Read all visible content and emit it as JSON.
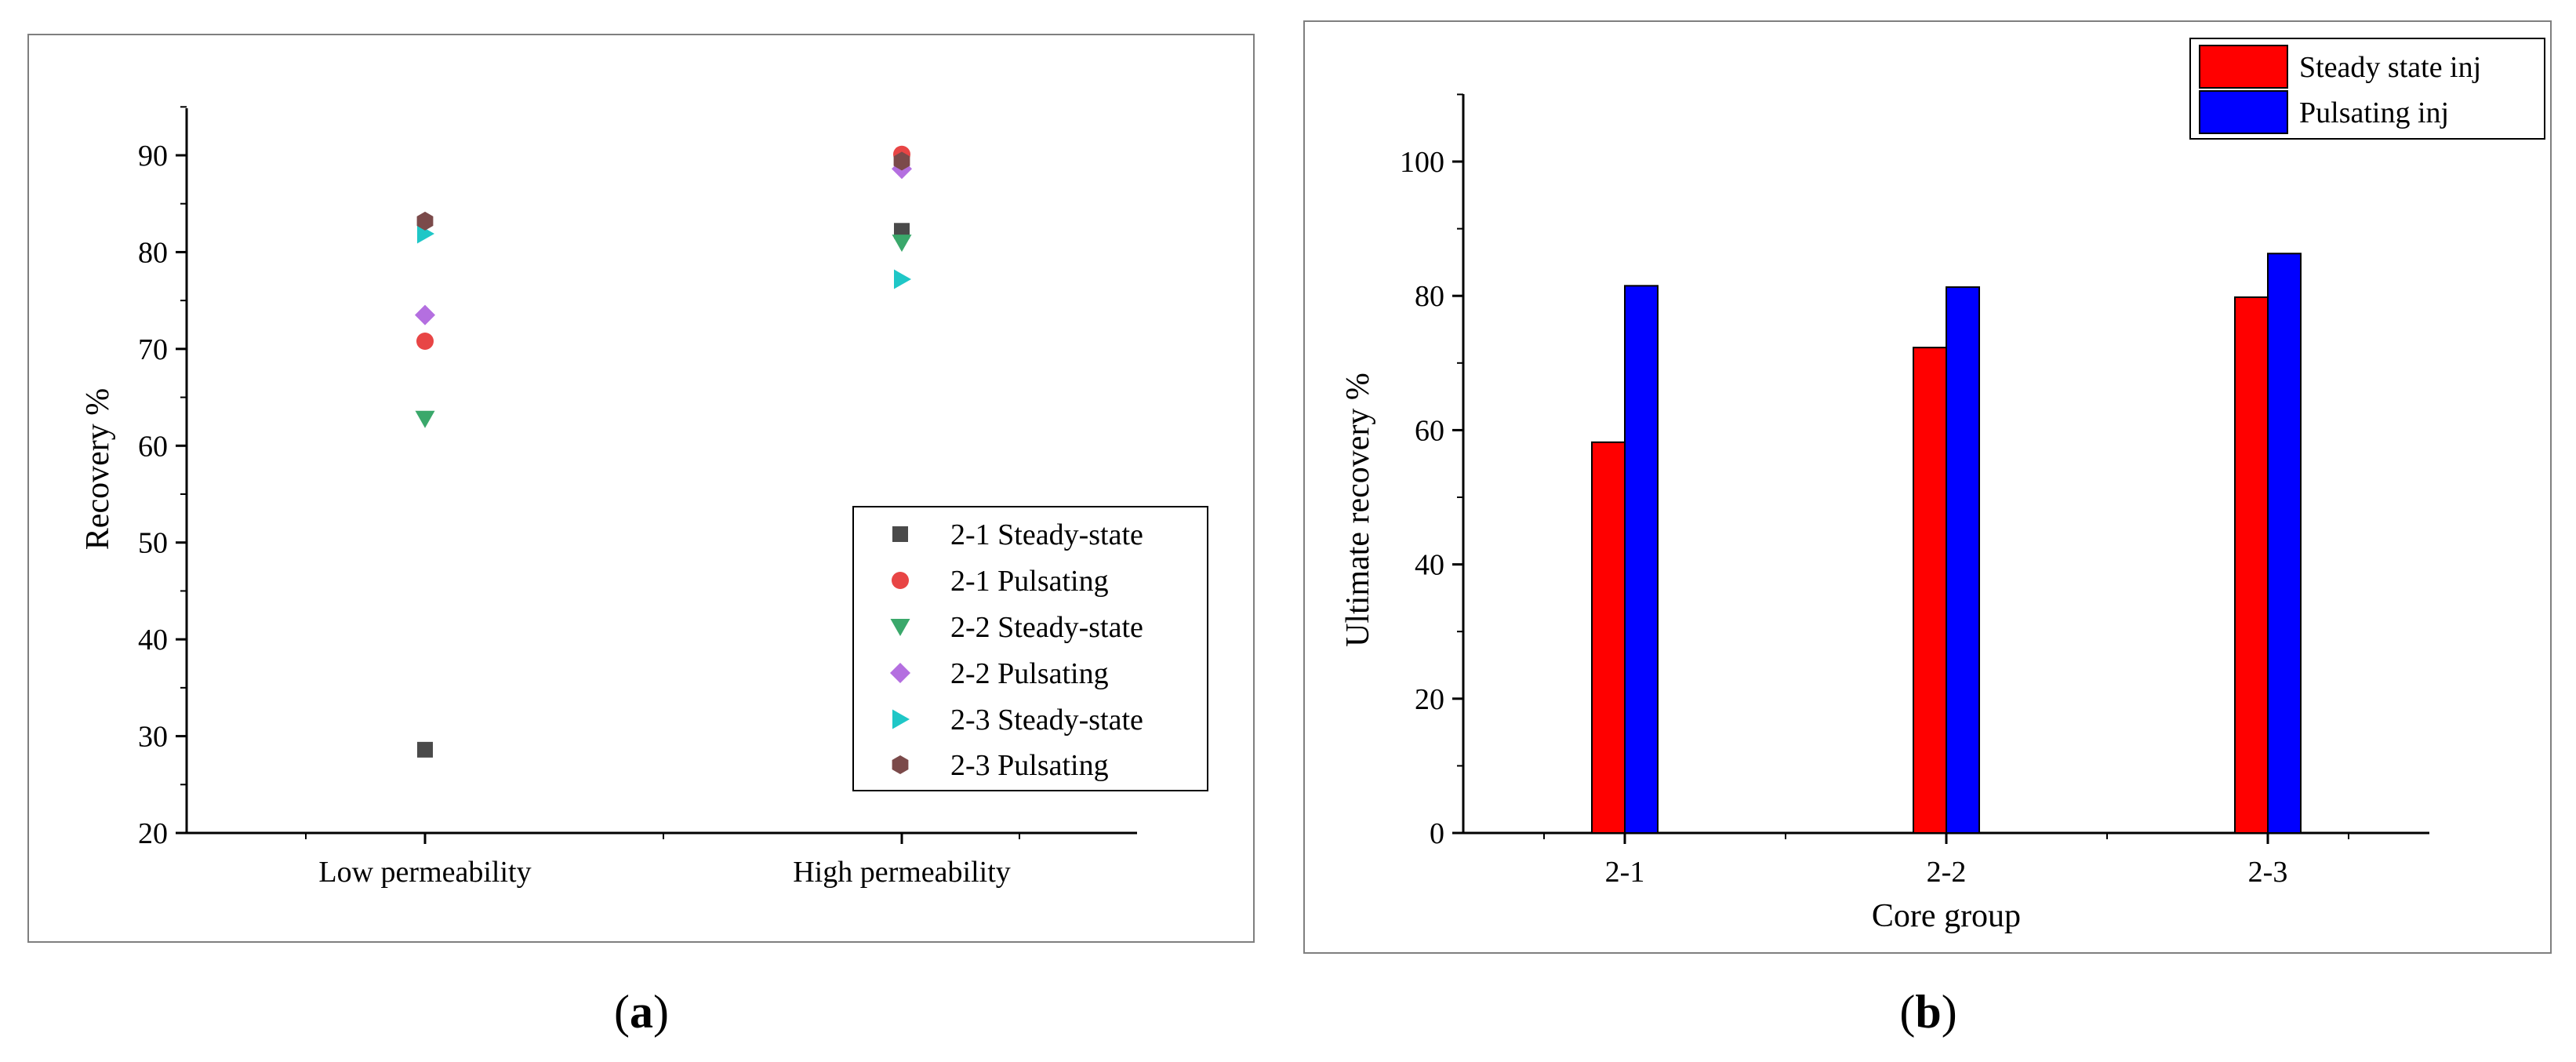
{
  "figure_captions": {
    "a": {
      "open": "(",
      "letter": "a",
      "close": ")"
    },
    "b": {
      "open": "(",
      "letter": "b",
      "close": ")"
    }
  },
  "chart_data": [
    {
      "id": "a",
      "type": "scatter",
      "title": "",
      "xlabel": "",
      "ylabel": "Recovery %",
      "categories": [
        "Low permeability",
        "High permeability"
      ],
      "ylim": [
        20,
        95
      ],
      "yticks": [
        20,
        30,
        40,
        50,
        60,
        70,
        80,
        90
      ],
      "grid": false,
      "legend_position": "bottom-right",
      "series": [
        {
          "name": "2-1 Steady-state",
          "marker": "square",
          "color": "#4a4a4a",
          "values": [
            28.6,
            82.2
          ]
        },
        {
          "name": "2-1 Pulsating",
          "marker": "circle",
          "color": "#e84545",
          "values": [
            70.8,
            90.1
          ]
        },
        {
          "name": "2-2 Steady-state",
          "marker": "triangle-down",
          "color": "#3aa86b",
          "values": [
            62.8,
            81.0
          ]
        },
        {
          "name": "2-2 Pulsating",
          "marker": "diamond",
          "color": "#b46fe0",
          "values": [
            73.5,
            88.6
          ]
        },
        {
          "name": "2-3 Steady-state",
          "marker": "triangle-right",
          "color": "#1fc7c7",
          "values": [
            81.9,
            77.2
          ]
        },
        {
          "name": "2-3 Pulsating",
          "marker": "hexagon",
          "color": "#7b4a4a",
          "values": [
            83.2,
            89.4
          ]
        }
      ]
    },
    {
      "id": "b",
      "type": "bar",
      "title": "",
      "xlabel": "Core group",
      "ylabel": "Ultimate recovery %",
      "categories": [
        "2-1",
        "2-2",
        "2-3"
      ],
      "ylim": [
        0,
        110
      ],
      "yticks": [
        0,
        20,
        40,
        60,
        80,
        100
      ],
      "grid": false,
      "legend_position": "top-right",
      "series": [
        {
          "name": "Steady state inj",
          "color": "#ff0000",
          "values": [
            58.2,
            72.3,
            79.8
          ]
        },
        {
          "name": "Pulsating inj",
          "color": "#0000ff",
          "values": [
            81.5,
            81.3,
            86.3
          ]
        }
      ]
    }
  ]
}
